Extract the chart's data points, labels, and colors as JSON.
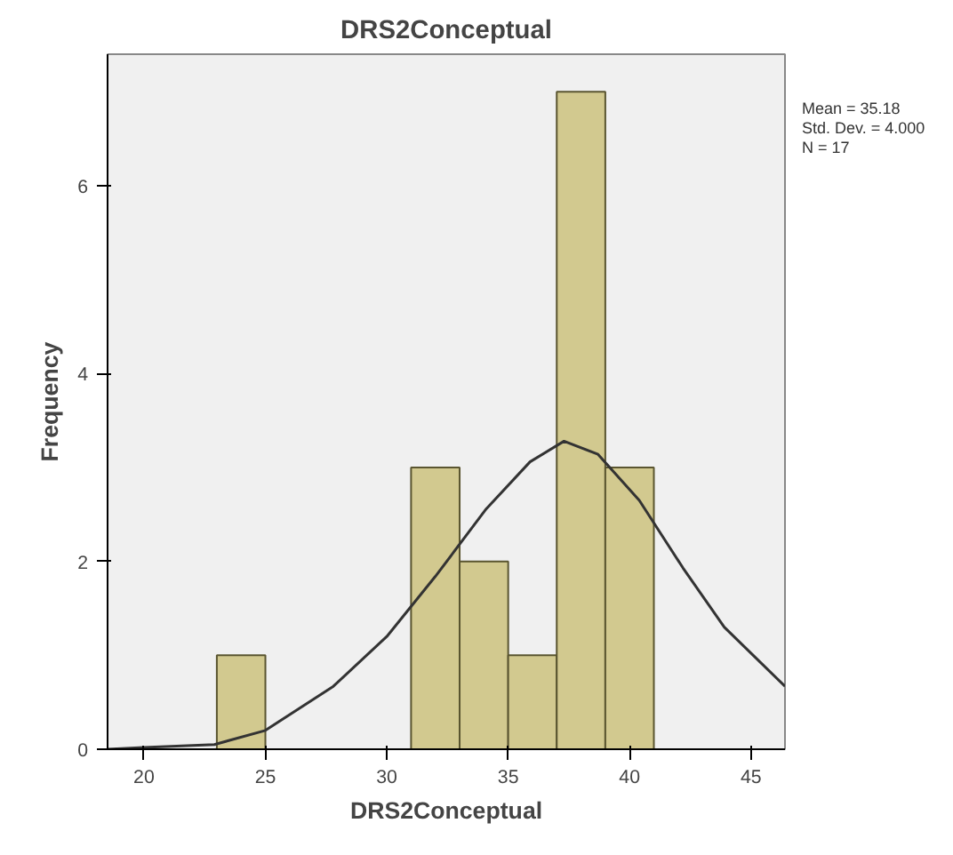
{
  "chart_data": {
    "type": "histogram",
    "title": "DRS2Conceptual",
    "xlabel": "DRS2Conceptual",
    "ylabel": "Frequency",
    "bins": [
      23,
      25,
      27,
      29,
      31,
      33,
      35,
      37,
      39,
      41
    ],
    "values": [
      1,
      0,
      0,
      0,
      3,
      2,
      1,
      7,
      3
    ],
    "color": "#d2c98f",
    "series": [
      {
        "type": "line",
        "color": "#333333",
        "x": [
          18.5,
          20,
          22.9,
          25,
          27.8,
          30,
          32,
          34.1,
          35.9,
          37.3,
          38.7,
          40.4,
          42.2,
          43.9,
          46.4
        ],
        "values": [
          0.0,
          0.02,
          0.05,
          0.2,
          0.67,
          1.2,
          1.84,
          2.56,
          3.06,
          3.28,
          3.14,
          2.65,
          1.93,
          1.3,
          0.67
        ]
      }
    ],
    "xlim": [
      18.5,
      46.4
    ],
    "xticks": [
      20,
      25,
      30,
      35,
      40,
      45
    ],
    "ylim": [
      0,
      7.4
    ],
    "yticks": [
      0,
      2,
      4,
      6
    ],
    "grid": false,
    "annotations": [
      "Mean = 35.18",
      "Std. Dev. = 4.000",
      "N = 17"
    ]
  }
}
